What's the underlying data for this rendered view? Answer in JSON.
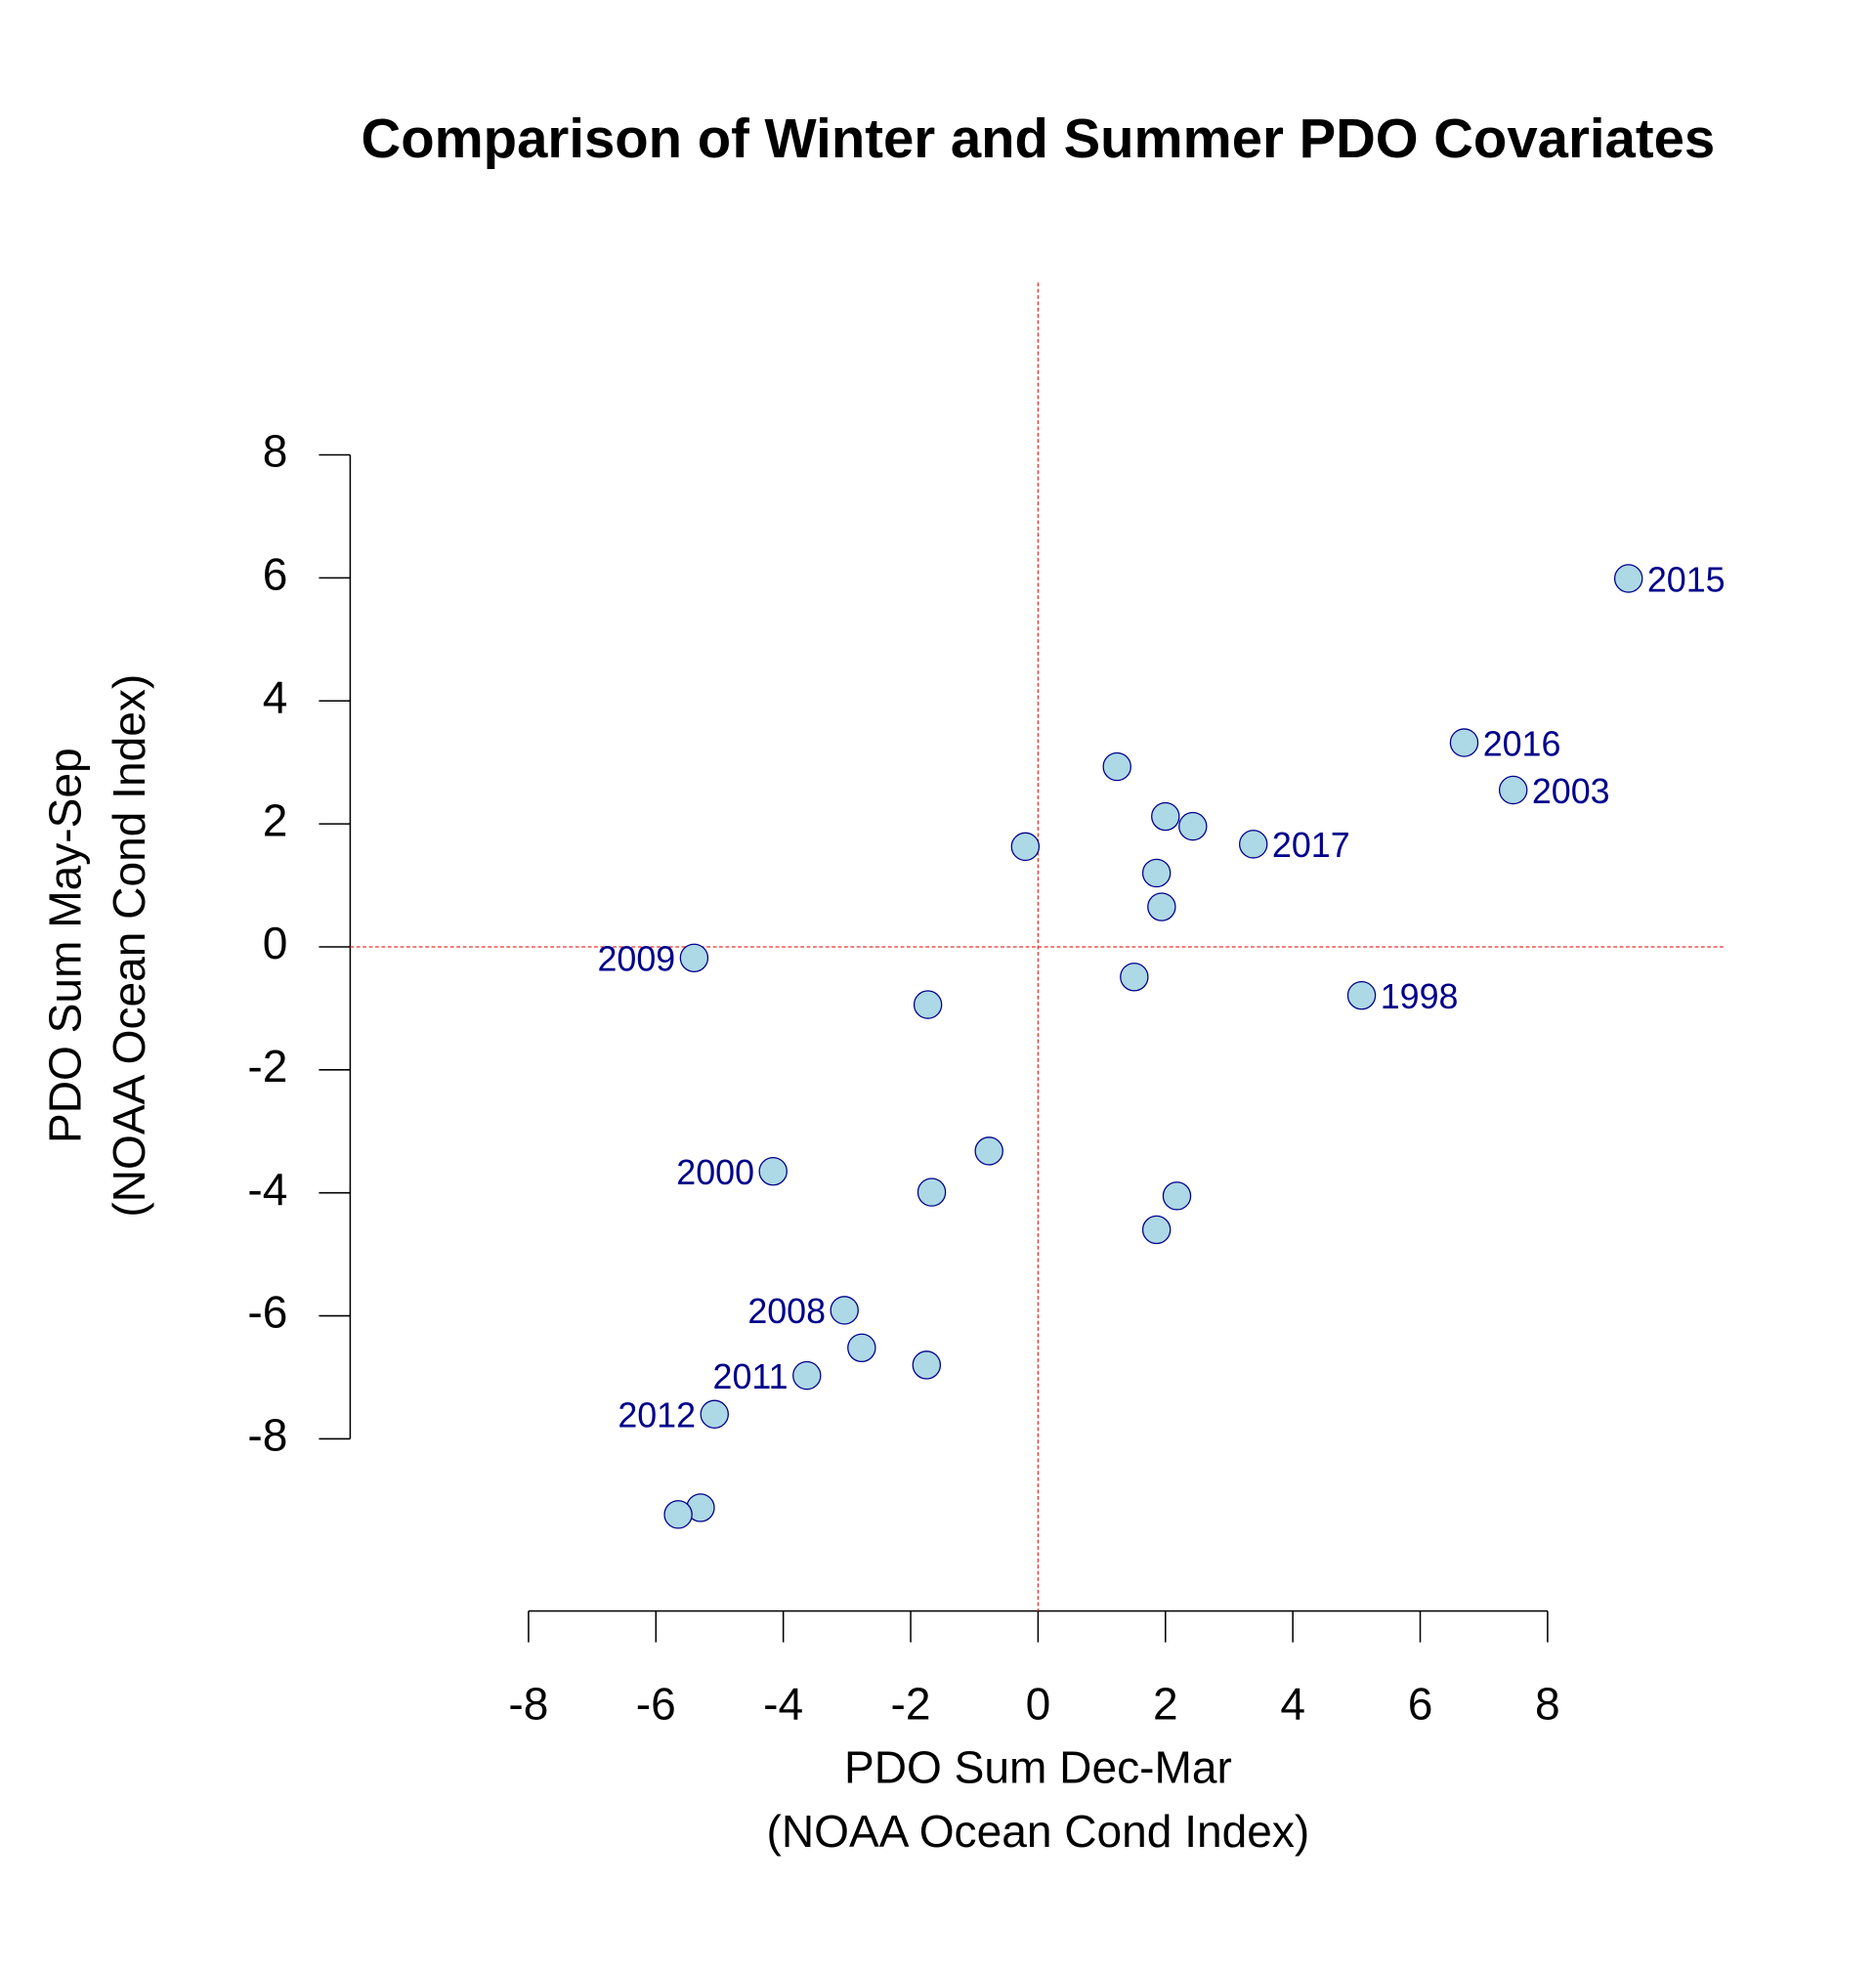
{
  "chart_data": {
    "type": "scatter",
    "title": "Comparison of Winter and Summer PDO Covariates",
    "xlabel": [
      "PDO Sum Dec-Mar",
      "(NOAA Ocean Cond Index)"
    ],
    "ylabel": [
      "PDO Sum May-Sep",
      "(NOAA Ocean Cond Index)"
    ],
    "x": [
      9.27,
      6.69,
      7.46,
      1.24,
      2.0,
      2.43,
      3.38,
      -0.2,
      1.86,
      1.94,
      -5.4,
      1.51,
      5.08,
      -1.73,
      -0.77,
      -4.16,
      -1.67,
      2.18,
      1.86,
      -3.04,
      -2.77,
      -1.75,
      -3.63,
      -5.08,
      -5.3,
      -5.65
    ],
    "y": [
      5.99,
      3.32,
      2.55,
      2.93,
      2.12,
      1.96,
      1.67,
      1.63,
      1.2,
      0.65,
      -0.18,
      -0.49,
      -0.79,
      -0.94,
      -3.32,
      -3.65,
      -3.99,
      -4.05,
      -4.6,
      -5.91,
      -6.52,
      -6.8,
      -6.97,
      -7.6,
      -9.12,
      -9.23
    ],
    "labels": [
      "2015",
      "2016",
      "2003",
      null,
      null,
      null,
      "2017",
      null,
      null,
      null,
      "2009",
      null,
      "1998",
      null,
      null,
      "2000",
      null,
      null,
      null,
      "2008",
      null,
      null,
      "2011",
      "2012",
      null,
      null
    ],
    "color": "#add8e6",
    "edge_color": "#00008b",
    "label_color": "#00008b",
    "xlim": [
      -10.8,
      10.8
    ],
    "ylim": [
      -10.8,
      10.8
    ],
    "xticks": [
      -8,
      -6,
      -4,
      -2,
      0,
      2,
      4,
      6,
      8
    ],
    "yticks": [
      -8,
      -6,
      -4,
      -2,
      0,
      2,
      4,
      6,
      8
    ],
    "hline": 0,
    "vline": 0,
    "refline_color": "#e8302a"
  }
}
